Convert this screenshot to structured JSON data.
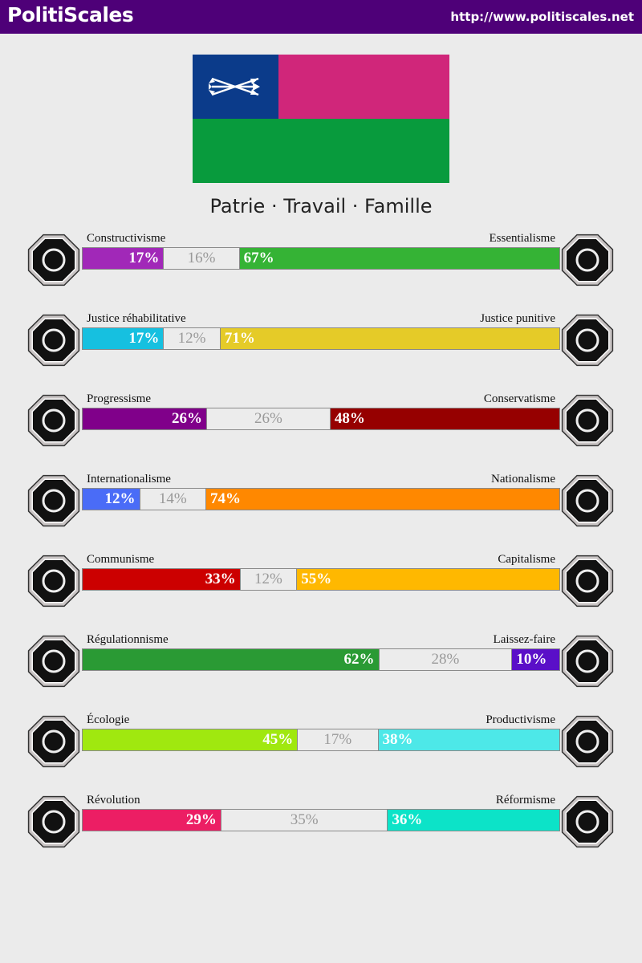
{
  "header": {
    "title": "PolitiScales",
    "url": "http://www.politiscales.net"
  },
  "flag": {
    "canton_color": "#0b3b8a",
    "top_color": "#d0267a",
    "bottom_color": "#089b3d"
  },
  "motto": "Patrie · Travail · Famille",
  "axes": [
    {
      "left_label": "Constructivisme",
      "right_label": "Essentialisme",
      "left_value": "17%",
      "mid_value": "16%",
      "right_value": "67%",
      "left_pct": 17,
      "mid_pct": 16,
      "right_pct": 67,
      "left_color": "#a128b8",
      "right_color": "#35b335",
      "left_icon": "eye-web-icon",
      "right_icon": "flower-icon"
    },
    {
      "left_label": "Justice réhabilitative",
      "right_label": "Justice punitive",
      "left_value": "17%",
      "mid_value": "12%",
      "right_value": "71%",
      "left_pct": 17,
      "mid_pct": 12,
      "right_pct": 71,
      "left_color": "#16c0e0",
      "right_color": "#e5cb28",
      "left_icon": "handshake-icon",
      "right_icon": "prison-bars-icon"
    },
    {
      "left_label": "Progressisme",
      "right_label": "Conservatisme",
      "left_value": "26%",
      "mid_value": "26%",
      "right_value": "48%",
      "left_pct": 26,
      "mid_pct": 26,
      "right_pct": 48,
      "left_color": "#80008a",
      "right_color": "#960000",
      "left_icon": "rocket-icon",
      "right_icon": "quill-icon"
    },
    {
      "left_label": "Internationalisme",
      "right_label": "Nationalisme",
      "left_value": "12%",
      "mid_value": "14%",
      "right_value": "74%",
      "left_pct": 12,
      "mid_pct": 14,
      "right_pct": 74,
      "left_color": "#4a6cf7",
      "right_color": "#ff8800",
      "left_icon": "globe-icon",
      "right_icon": "flag-icon"
    },
    {
      "left_label": "Communisme",
      "right_label": "Capitalisme",
      "left_value": "33%",
      "mid_value": "12%",
      "right_value": "55%",
      "left_pct": 33,
      "mid_pct": 12,
      "right_pct": 55,
      "left_color": "#cc0000",
      "right_color": "#ffb800",
      "left_icon": "hammer-sickle-icon",
      "right_icon": "money-bag-icon"
    },
    {
      "left_label": "Régulationnisme",
      "right_label": "Laissez-faire",
      "left_value": "62%",
      "mid_value": "28%",
      "right_value": "10%",
      "left_pct": 62,
      "mid_pct": 28,
      "right_pct": 10,
      "left_color": "#2a9a34",
      "right_color": "#5a0fc8",
      "left_icon": "ruler-shapes-icon",
      "right_icon": "butterflies-icon"
    },
    {
      "left_label": "Écologie",
      "right_label": "Productivisme",
      "left_value": "45%",
      "mid_value": "17%",
      "right_value": "38%",
      "left_pct": 45,
      "mid_pct": 17,
      "right_pct": 38,
      "left_color": "#a0e80f",
      "right_color": "#4de8e8",
      "left_icon": "sprout-icon",
      "right_icon": "gear-icon"
    },
    {
      "left_label": "Révolution",
      "right_label": "Réformisme",
      "left_value": "29%",
      "mid_value": "35%",
      "right_value": "36%",
      "left_pct": 29,
      "mid_pct": 35,
      "right_pct": 36,
      "left_color": "#ec1e64",
      "right_color": "#0ce3c8",
      "left_icon": "fist-icon",
      "right_icon": "landscape-icon"
    }
  ]
}
